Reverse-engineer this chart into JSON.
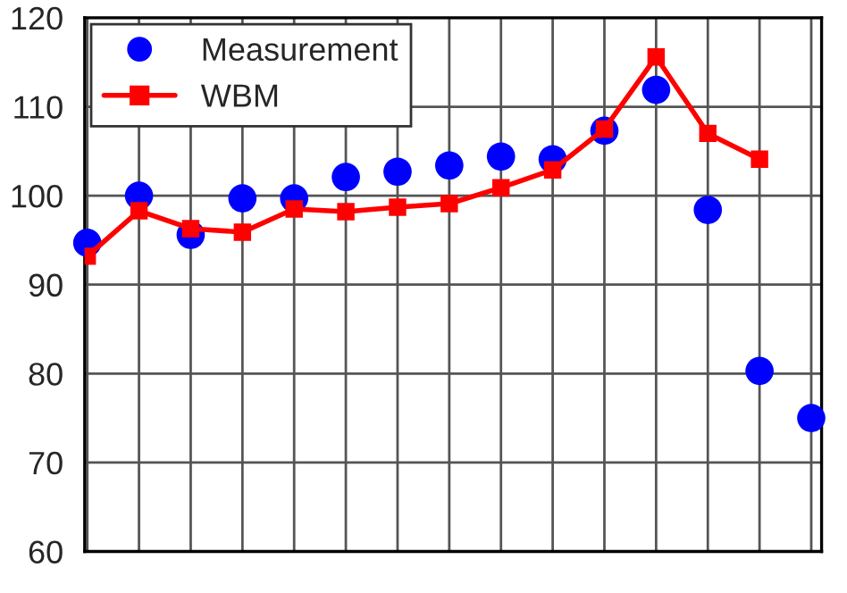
{
  "chart_data": {
    "type": "line",
    "categories": [
      null,
      null,
      null,
      null,
      null,
      null,
      null,
      null,
      null,
      null,
      null,
      null,
      null,
      null,
      null
    ],
    "series": [
      {
        "name": "Measurement",
        "type": "scatter",
        "color": "#0000ff",
        "marker": "circle",
        "values": [
          94.7,
          100,
          95.6,
          99.7,
          99.7,
          102.1,
          102.7,
          103.4,
          104.4,
          104.1,
          107.3,
          111.9,
          98.4,
          80.3,
          75.0
        ]
      },
      {
        "name": "WBM",
        "color": "#ff0000",
        "marker": "square",
        "line_style": "solid",
        "values": [
          93.2,
          98.3,
          96.3,
          95.9,
          98.5,
          98.2,
          98.7,
          99.1,
          100.9,
          102.9,
          107.5,
          115.6,
          107.0,
          104.1,
          null
        ]
      }
    ],
    "ylim": [
      60,
      120
    ],
    "yticks": [
      60,
      70,
      80,
      90,
      100,
      110,
      120
    ],
    "grid": true,
    "legend": "top left"
  }
}
